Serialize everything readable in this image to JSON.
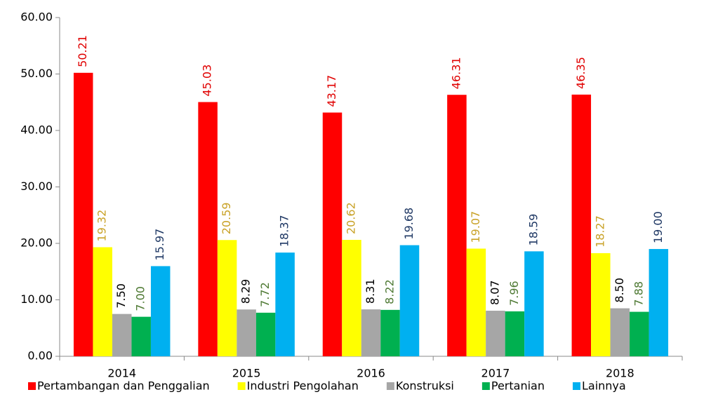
{
  "chart_data": {
    "type": "bar",
    "categories": [
      "2014",
      "2015",
      "2016",
      "2017",
      "2018"
    ],
    "series": [
      {
        "name": "Pertambangan dan Penggalian",
        "color": "#ff0000",
        "label_color": "#e00000",
        "values": [
          50.21,
          45.03,
          43.17,
          46.31,
          46.35
        ],
        "value_labels": [
          "50.21",
          "45.03",
          "43.17",
          "46.31",
          "46.35"
        ]
      },
      {
        "name": "Industri Pengolahan",
        "color": "#ffff00",
        "label_color": "#c9a227",
        "values": [
          19.32,
          20.59,
          20.62,
          19.07,
          18.27
        ],
        "value_labels": [
          "19.32",
          "20.59",
          "20.62",
          "19.07",
          "18.27"
        ]
      },
      {
        "name": "Konstruksi",
        "color": "#a6a6a6",
        "label_color": "#000000",
        "values": [
          7.5,
          8.29,
          8.31,
          8.07,
          8.5
        ],
        "value_labels": [
          "7.50",
          "8.29",
          "8.31",
          "8.07",
          "8.50"
        ]
      },
      {
        "name": "Pertanian",
        "color": "#00b050",
        "label_color": "#4f7a34",
        "values": [
          7.0,
          7.72,
          8.22,
          7.96,
          7.88
        ],
        "value_labels": [
          "7.00",
          "7.72",
          "8.22",
          "7.96",
          "7.88"
        ]
      },
      {
        "name": "Lainnya",
        "color": "#00b0f0",
        "label_color": "#1f3864",
        "values": [
          15.97,
          18.37,
          19.68,
          18.59,
          19.0
        ],
        "value_labels": [
          "15.97",
          "18.37",
          "19.68",
          "18.59",
          "19.00"
        ]
      }
    ],
    "ylim": [
      0,
      60
    ],
    "yticks": [
      {
        "value": 0,
        "label": "0.00"
      },
      {
        "value": 10,
        "label": "10.00"
      },
      {
        "value": 20,
        "label": "20.00"
      },
      {
        "value": 30,
        "label": "30.00"
      },
      {
        "value": 40,
        "label": "40.00"
      },
      {
        "value": 50,
        "label": "50.00"
      },
      {
        "value": 60,
        "label": "60.00"
      }
    ],
    "legend": "bottom"
  }
}
